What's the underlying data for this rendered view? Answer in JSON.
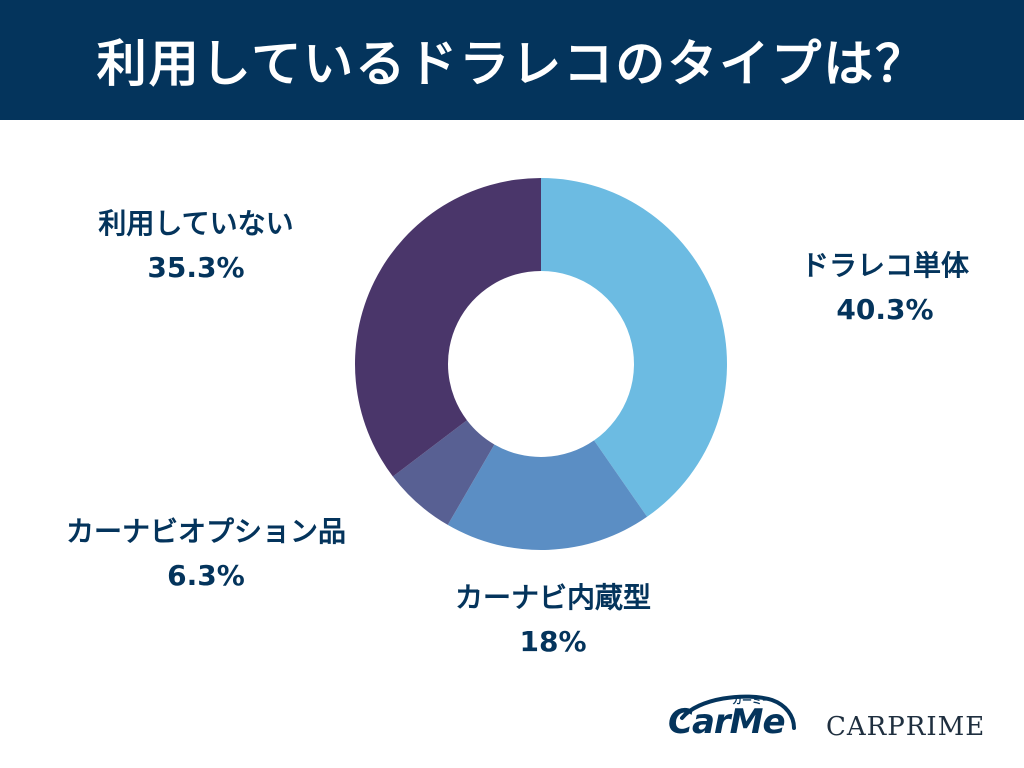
{
  "header": {
    "title": "利用しているドラレコのタイプは？"
  },
  "chart_data": {
    "type": "pie",
    "donut": true,
    "title": "利用しているドラレコのタイプは？",
    "start": "top",
    "direction": "clockwise",
    "slices": [
      {
        "label": "ドラレコ単体",
        "value": 40.3,
        "value_label": "40.3%",
        "color": "#6cbbe2"
      },
      {
        "label": "カーナビ内蔵型",
        "value": 18,
        "value_label": "18%",
        "color": "#5b8ec4"
      },
      {
        "label": "カーナビオプション品",
        "value": 6.3,
        "value_label": "6.3%",
        "color": "#586093"
      },
      {
        "label": "利用していない",
        "value": 35.3,
        "value_label": "35.3%",
        "color": "#4a366a"
      }
    ]
  },
  "logos": {
    "carme_word": "CarMe",
    "carme_kana": "カーミー",
    "carprime": "CARPRIME"
  }
}
